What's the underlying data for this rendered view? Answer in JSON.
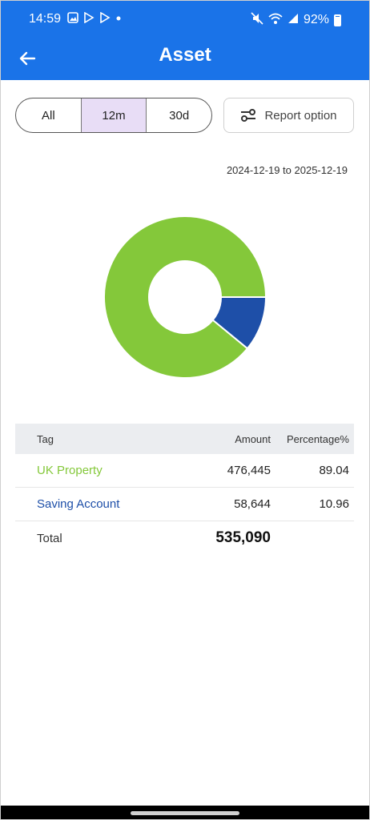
{
  "status_bar": {
    "time": "14:59",
    "battery": "92%",
    "left_icons": [
      "image-icon",
      "play-store-icon",
      "play-store-icon",
      "dot-icon"
    ],
    "right_icons": [
      "mute-icon",
      "wifi-icon",
      "signal-icon",
      "battery-icon"
    ]
  },
  "app_bar": {
    "title": "Asset"
  },
  "period": {
    "options": [
      "All",
      "12m",
      "30d"
    ],
    "selected": "12m"
  },
  "report_option_label": "Report option",
  "date_range": "2024-12-19 to 2025-12-19",
  "colors": {
    "primary": "#1a73e8",
    "uk_property": "#84c83a",
    "saving_account": "#1e4fa8"
  },
  "chart_data": {
    "type": "pie",
    "donut": true,
    "categories": [
      "UK Property",
      "Saving Account"
    ],
    "values": [
      476445,
      58644
    ],
    "percentages": [
      89.04,
      10.96
    ],
    "colors": [
      "#84c83a",
      "#1e4fa8"
    ]
  },
  "table": {
    "headers": {
      "tag": "Tag",
      "amount": "Amount",
      "percentage": "Percentage%"
    },
    "rows": [
      {
        "tag": "UK Property",
        "amount": "476,445",
        "percentage": "89.04",
        "color": "#84c83a"
      },
      {
        "tag": "Saving Account",
        "amount": "58,644",
        "percentage": "10.96",
        "color": "#1e4fa8"
      }
    ],
    "total_label": "Total",
    "total_value": "535,090"
  }
}
